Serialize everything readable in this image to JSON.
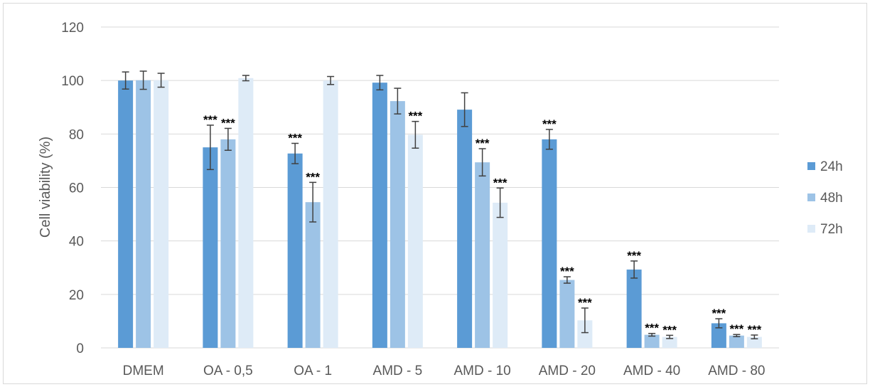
{
  "chart_data": {
    "type": "bar",
    "title": "",
    "xlabel": "",
    "ylabel": "Cell viability (%)",
    "ylim": [
      0,
      120
    ],
    "yticks": [
      0,
      20,
      40,
      60,
      80,
      100,
      120
    ],
    "grid": true,
    "legend_position": "right",
    "categories": [
      "DMEM",
      "OA - 0,5",
      "OA - 1",
      "AMD - 5",
      "AMD - 10",
      "AMD - 20",
      "AMD - 40",
      "AMD - 80"
    ],
    "series": [
      {
        "name": "24h",
        "color": "#5b9bd5",
        "values": [
          100,
          75,
          72.7,
          99.2,
          89.1,
          78,
          29.3,
          9.2
        ],
        "errors": [
          3.2,
          8.3,
          3.8,
          2.7,
          6.3,
          3.7,
          3.2,
          1.7
        ],
        "significance": [
          "",
          "***",
          "***",
          "",
          "",
          "***",
          "***",
          "***"
        ]
      },
      {
        "name": "48h",
        "color": "#9dc3e6",
        "values": [
          100.1,
          78,
          54.5,
          92.3,
          69.4,
          25.4,
          4.9,
          4.6
        ],
        "errors": [
          3.4,
          4.1,
          7.4,
          4.8,
          5.1,
          1.2,
          0.5,
          0.4
        ],
        "significance": [
          "",
          "***",
          "***",
          "",
          "***",
          "***",
          "***",
          "***"
        ]
      },
      {
        "name": "72h",
        "color": "#deebf7",
        "values": [
          100.1,
          100.9,
          100,
          79.7,
          54.3,
          10.3,
          4.1,
          4.1
        ],
        "errors": [
          2.6,
          1,
          1.5,
          5,
          5.5,
          4.6,
          0.6,
          0.7
        ],
        "significance": [
          "",
          "",
          "",
          "***",
          "***",
          "***",
          "***",
          "***"
        ]
      }
    ]
  }
}
